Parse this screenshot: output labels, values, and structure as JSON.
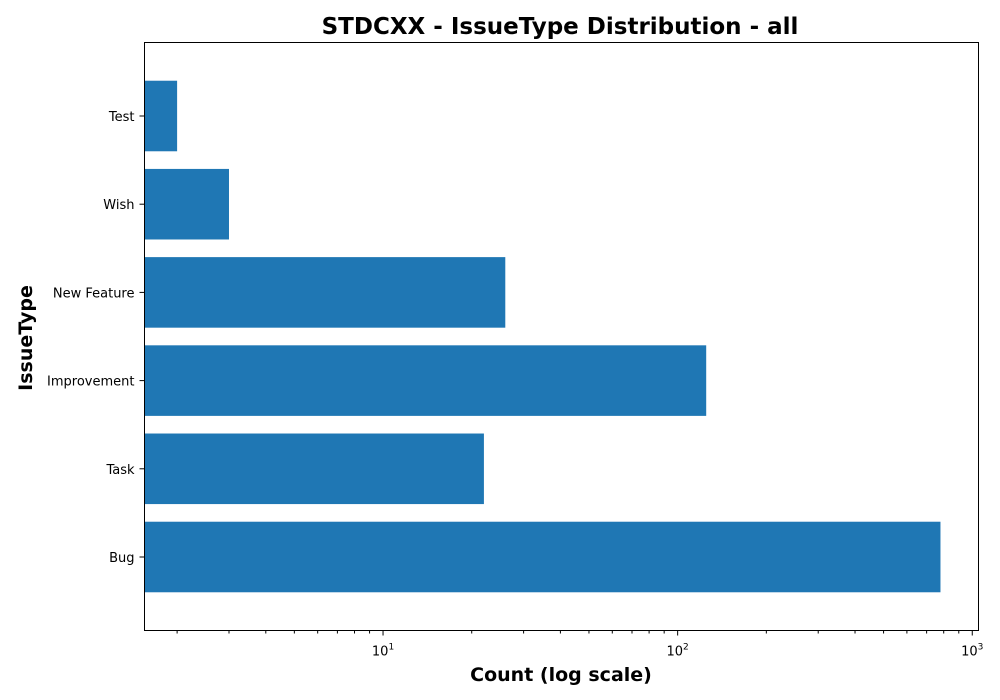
{
  "chart_data": {
    "type": "bar",
    "orientation": "horizontal",
    "title": "STDCXX - IssueType Distribution - all",
    "xlabel": "Count (log scale)",
    "ylabel": "IssueType",
    "xscale": "log",
    "xlim": [
      1.55,
      1050
    ],
    "categories": [
      "Bug",
      "Task",
      "Improvement",
      "New Feature",
      "Wish",
      "Test"
    ],
    "values": [
      780,
      22,
      125,
      26,
      3,
      2
    ],
    "color": "#1f77b4",
    "x_ticks": [
      {
        "value": 10,
        "base": "10",
        "exp": "1"
      },
      {
        "value": 100,
        "base": "10",
        "exp": "2"
      },
      {
        "value": 1000,
        "base": "10",
        "exp": "3"
      }
    ],
    "grid": false
  }
}
